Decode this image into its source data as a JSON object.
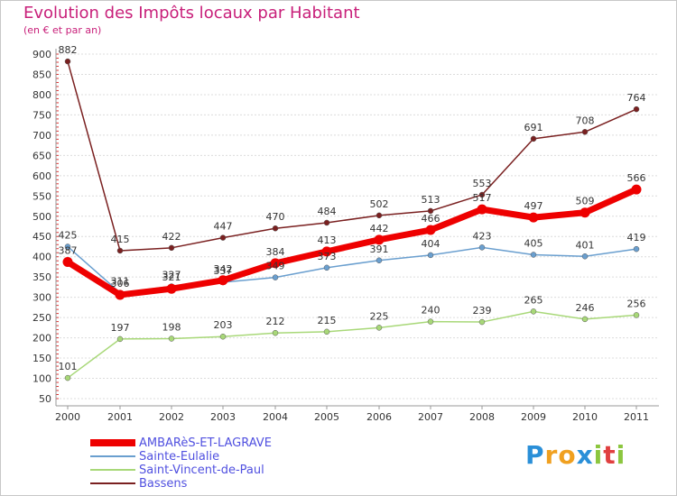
{
  "chart_data": {
    "type": "line",
    "title": "Evolution des Impôts locaux par Habitant",
    "subtitle": "(en € et par an)",
    "xlabel": "",
    "ylabel": "",
    "categories": [
      "2000",
      "2001",
      "2002",
      "2003",
      "2004",
      "2005",
      "2006",
      "2007",
      "2008",
      "2009",
      "2010",
      "2011"
    ],
    "ylim": [
      50,
      900
    ],
    "yticks": [
      50,
      100,
      150,
      200,
      250,
      300,
      350,
      400,
      450,
      500,
      550,
      600,
      650,
      700,
      750,
      800,
      850,
      900
    ],
    "yticks_labels": [
      "50",
      "100",
      "150",
      "200",
      "250",
      "300",
      "350",
      "400",
      "450",
      "500",
      "550",
      "600",
      "650",
      "700",
      "750",
      "800",
      "850",
      "900"
    ],
    "grid": "horizontal",
    "legend": "bottom-left",
    "series": [
      {
        "name": "AMBARèS-ET-LAGRAVE",
        "color": "#ee0000",
        "values": [
          387,
          306,
          321,
          342,
          384,
          413,
          442,
          466,
          517,
          497,
          509,
          566
        ],
        "labels": [
          "387",
          "306",
          "321",
          "342",
          "384",
          "413",
          "442",
          "466",
          "517",
          "497",
          "509",
          "566"
        ]
      },
      {
        "name": "Sainte-Eulalie",
        "color": "#6a9fcf",
        "values": [
          425,
          311,
          327,
          337,
          349,
          373,
          391,
          404,
          423,
          405,
          401,
          419
        ],
        "labels": [
          "425",
          "311",
          "327",
          "337",
          "349",
          "373",
          "391",
          "404",
          "423",
          "405",
          "401",
          "419"
        ]
      },
      {
        "name": "Saint-Vincent-de-Paul",
        "color": "#a8d878",
        "values": [
          101,
          197,
          198,
          203,
          212,
          215,
          225,
          240,
          239,
          265,
          246,
          256
        ],
        "labels": [
          "101",
          "197",
          "198",
          "203",
          "212",
          "215",
          "225",
          "240",
          "239",
          "265",
          "246",
          "256"
        ]
      },
      {
        "name": "Bassens",
        "color": "#7a2020",
        "values": [
          882,
          415,
          422,
          447,
          470,
          484,
          502,
          513,
          553,
          691,
          708,
          764
        ],
        "labels": [
          "882",
          "415",
          "422",
          "447",
          "470",
          "484",
          "502",
          "513",
          "553",
          "691",
          "708",
          "764"
        ]
      }
    ]
  },
  "logo": {
    "letters": [
      "P",
      "r",
      "o",
      "x",
      "i",
      "t",
      "i"
    ],
    "colors": [
      "#2a8fd8",
      "#f0a020",
      "#f0a020",
      "#2a8fd8",
      "#8cc63f",
      "#e04040",
      "#8cc63f"
    ]
  }
}
